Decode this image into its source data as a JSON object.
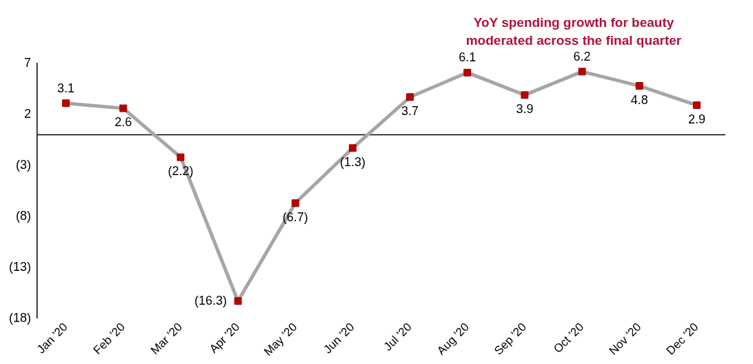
{
  "chart_data": {
    "type": "line",
    "annotation": "YoY spending growth for beauty moderated across the final quarter",
    "categories": [
      "Jan '20",
      "Feb '20",
      "Mar '20",
      "Apr '20",
      "May '20",
      "Jun '20",
      "Jul '20",
      "Aug '20",
      "Sep '20",
      "Oct '20",
      "Nov '20",
      "Dec '20"
    ],
    "values": [
      3.1,
      2.6,
      -2.2,
      -16.3,
      -6.7,
      -1.3,
      3.7,
      6.1,
      3.9,
      6.2,
      4.8,
      2.9
    ],
    "value_labels": [
      "3.1",
      "2.6",
      "(2.2)",
      "(16.3)",
      "(6.7)",
      "(1.3)",
      "3.7",
      "6.1",
      "3.9",
      "6.2",
      "4.8",
      "2.9"
    ],
    "color": "#a6a6a6",
    "marker": "square",
    "data_labels": true,
    "ylim": [
      -18,
      7
    ],
    "yticks": [
      {
        "value": -18,
        "label": "(18)"
      },
      {
        "value": -13,
        "label": "(13)"
      },
      {
        "value": -8,
        "label": "(8)"
      },
      {
        "value": -3,
        "label": "(3)"
      },
      2,
      7
    ],
    "grid": false
  }
}
